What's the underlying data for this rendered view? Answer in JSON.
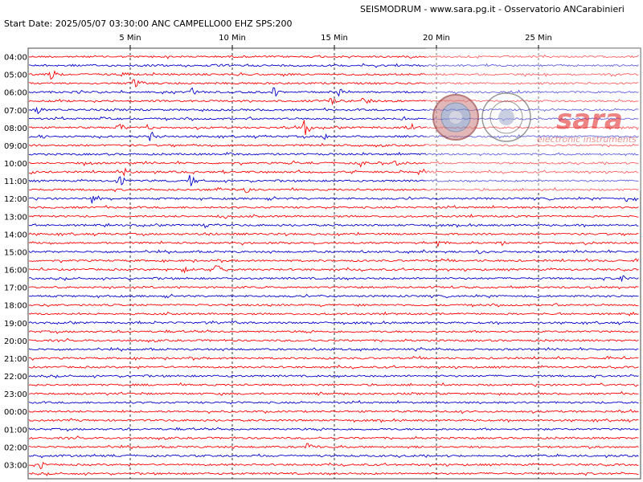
{
  "header": {
    "title": "SEISMODRUM - www.sara.pg.it - Osservatorio ANCarabinieri",
    "start_info": "Start Date: 2025/05/07 03:30:00 ANC CAMPELLO00 EHZ  SPS:200"
  },
  "logo": {
    "brand": "sara",
    "tagline": "electronic instruments"
  },
  "colors": {
    "trace_a": "#ff0000",
    "trace_b": "#0000cc",
    "grid": "#000000",
    "frame": "#444444"
  },
  "chart_data": {
    "type": "helicorder",
    "title": "",
    "xlabel": "",
    "ylabel": "",
    "x_unit": "min",
    "xlim": [
      0,
      30
    ],
    "x_ticks": [
      {
        "value": 5,
        "label": "5 Min"
      },
      {
        "value": 10,
        "label": "10 Min"
      },
      {
        "value": 15,
        "label": "15 Min"
      },
      {
        "value": 20,
        "label": "20 Min"
      },
      {
        "value": 25,
        "label": "25 Min"
      }
    ],
    "hour_labels": [
      "04:00",
      "05:00",
      "06:00",
      "07:00",
      "08:00",
      "09:00",
      "10:00",
      "11:00",
      "12:00",
      "13:00",
      "14:00",
      "15:00",
      "16:00",
      "17:00",
      "18:00",
      "19:00",
      "20:00",
      "21:00",
      "22:00",
      "23:00",
      "00:00",
      "01:00",
      "02:00",
      "03:00"
    ],
    "rows_per_hour": 2,
    "row_colors": [
      "red",
      "blue",
      "red",
      "red",
      "blue",
      "red",
      "blue",
      "blue",
      "red",
      "blue",
      "red",
      "blue",
      "red",
      "red",
      "blue",
      "red",
      "blue",
      "red",
      "red",
      "blue",
      "red",
      "red",
      "blue",
      "red",
      "red",
      "blue",
      "red",
      "blue",
      "red",
      "red",
      "blue",
      "red",
      "red",
      "blue",
      "red",
      "red",
      "blue",
      "red",
      "red",
      "blue",
      "red",
      "red",
      "blue",
      "red",
      "red",
      "blue",
      "red",
      "red"
    ],
    "events": [
      {
        "row": 2,
        "minute": 1.1,
        "amp": 8
      },
      {
        "row": 2,
        "minute": 4.6,
        "amp": 5
      },
      {
        "row": 3,
        "minute": 5.2,
        "amp": 7
      },
      {
        "row": 4,
        "minute": 8.0,
        "amp": 6
      },
      {
        "row": 4,
        "minute": 12.0,
        "amp": 7
      },
      {
        "row": 4,
        "minute": 15.2,
        "amp": 9
      },
      {
        "row": 5,
        "minute": 14.8,
        "amp": 7
      },
      {
        "row": 5,
        "minute": 16.4,
        "amp": 8
      },
      {
        "row": 6,
        "minute": 0.4,
        "amp": 6
      },
      {
        "row": 7,
        "minute": 3.7,
        "amp": 6
      },
      {
        "row": 7,
        "minute": 18.3,
        "amp": 8
      },
      {
        "row": 8,
        "minute": 4.4,
        "amp": 6
      },
      {
        "row": 8,
        "minute": 5.8,
        "amp": 5
      },
      {
        "row": 8,
        "minute": 13.5,
        "amp": 12
      },
      {
        "row": 8,
        "minute": 18.7,
        "amp": 6
      },
      {
        "row": 9,
        "minute": 0.7,
        "amp": 5
      },
      {
        "row": 9,
        "minute": 6.0,
        "amp": 10
      },
      {
        "row": 9,
        "minute": 14.5,
        "amp": 6
      },
      {
        "row": 10,
        "minute": 16.0,
        "amp": 5
      },
      {
        "row": 11,
        "minute": 9.8,
        "amp": 4
      },
      {
        "row": 12,
        "minute": 2.8,
        "amp": 8
      },
      {
        "row": 12,
        "minute": 12.8,
        "amp": 7
      },
      {
        "row": 12,
        "minute": 16.2,
        "amp": 6
      },
      {
        "row": 12,
        "minute": 18.0,
        "amp": 5
      },
      {
        "row": 13,
        "minute": 0.1,
        "amp": 9
      },
      {
        "row": 13,
        "minute": 4.7,
        "amp": 6
      },
      {
        "row": 13,
        "minute": 19.2,
        "amp": 7
      },
      {
        "row": 14,
        "minute": 4.4,
        "amp": 10
      },
      {
        "row": 14,
        "minute": 7.9,
        "amp": 9
      },
      {
        "row": 15,
        "minute": 9.2,
        "amp": 7
      },
      {
        "row": 15,
        "minute": 10.6,
        "amp": 7
      },
      {
        "row": 16,
        "minute": 3.1,
        "amp": 5
      },
      {
        "row": 16,
        "minute": 29.3,
        "amp": 6
      },
      {
        "row": 18,
        "minute": 9.4,
        "amp": 6
      },
      {
        "row": 19,
        "minute": 8.6,
        "amp": 5
      },
      {
        "row": 20,
        "minute": 8.9,
        "amp": 5
      },
      {
        "row": 21,
        "minute": 20.0,
        "amp": 5
      },
      {
        "row": 21,
        "minute": 23.0,
        "amp": 6
      },
      {
        "row": 21,
        "minute": 26.6,
        "amp": 6
      },
      {
        "row": 22,
        "minute": 19.4,
        "amp": 4
      },
      {
        "row": 22,
        "minute": 22.0,
        "amp": 5
      },
      {
        "row": 24,
        "minute": 7.5,
        "amp": 6
      },
      {
        "row": 24,
        "minute": 9.2,
        "amp": 10
      },
      {
        "row": 25,
        "minute": 29.0,
        "amp": 7
      },
      {
        "row": 30,
        "minute": 10.0,
        "amp": 4
      },
      {
        "row": 44,
        "minute": 13.6,
        "amp": 7
      },
      {
        "row": 46,
        "minute": 0.6,
        "amp": 5
      }
    ]
  }
}
